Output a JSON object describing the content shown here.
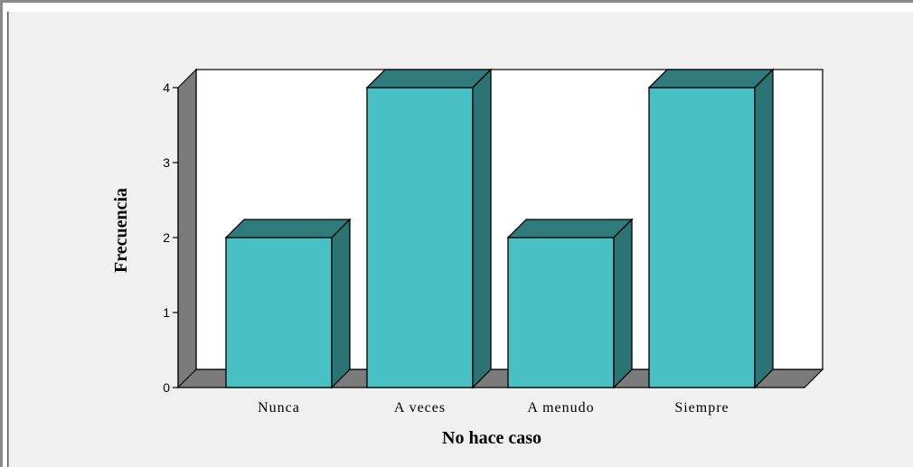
{
  "chart_data": {
    "type": "bar",
    "style": "3d",
    "categories": [
      "Nunca",
      "A veces",
      "A menudo",
      "Siempre"
    ],
    "values": [
      2,
      4,
      2,
      4
    ],
    "xlabel": "No hace caso",
    "ylabel": "Frecuencia",
    "ylim": [
      0,
      4
    ],
    "yticks": [
      "0",
      "1",
      "2",
      "3",
      "4"
    ],
    "grid": false,
    "legend": "none"
  },
  "colors": {
    "bar_front": "#48c0c4",
    "bar_top": "#2f7b7c",
    "bar_side": "#2c7474",
    "wall_side": "#7b7b7b",
    "floor": "#7b7b7b",
    "plot_background": "#ffffff",
    "frame_background": "#f0f0f0",
    "outline": "#000000"
  }
}
